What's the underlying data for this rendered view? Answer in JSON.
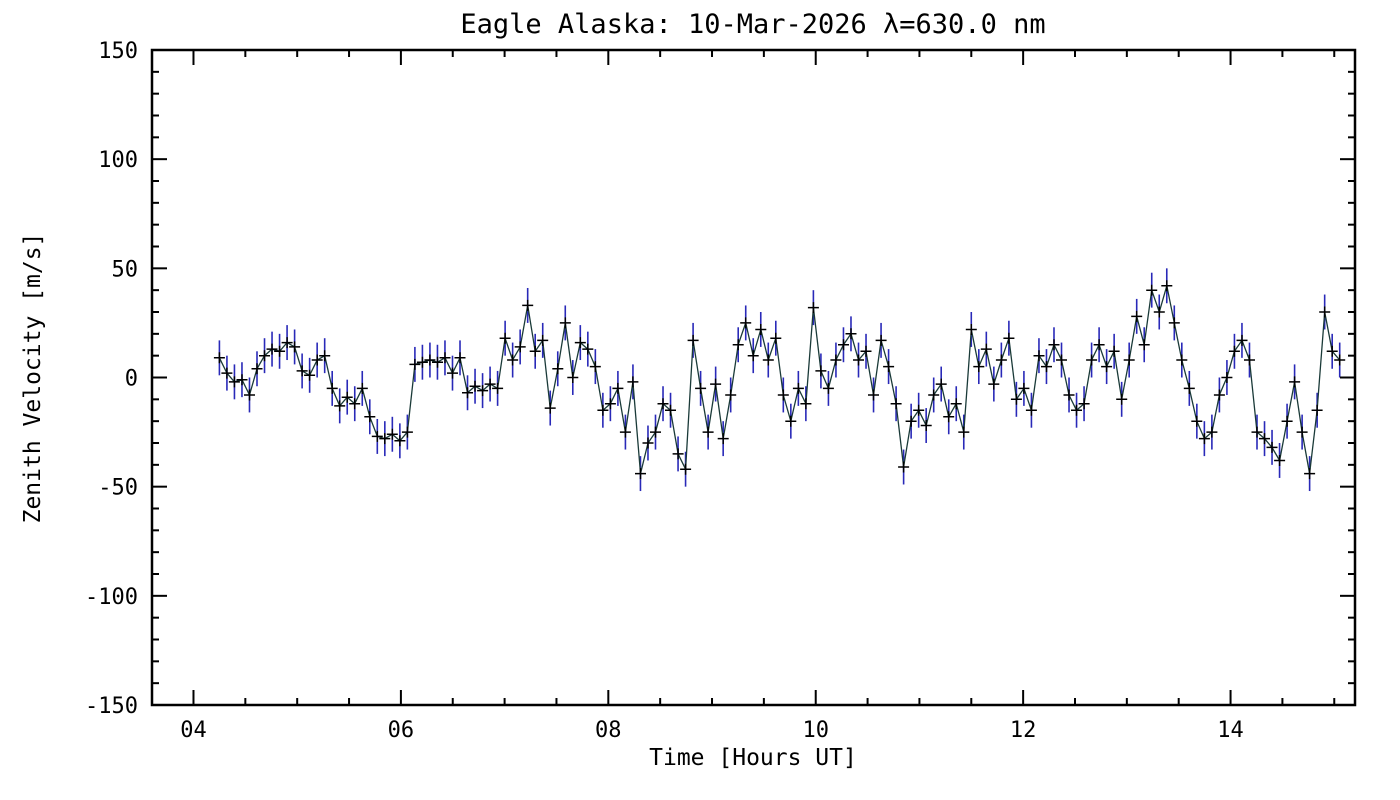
{
  "page": {
    "background": "#ffffff"
  },
  "chart_data": {
    "type": "line",
    "title": "Eagle Alaska: 10-Mar-2026 λ=630.0 nm",
    "xlabel": "Time [Hours UT]",
    "ylabel": "Zenith Velocity [m/s]",
    "series_name": "zenith-velocity",
    "xlim": [
      3.6,
      15.2
    ],
    "ylim": [
      -150,
      150
    ],
    "x_tick_values": [
      4,
      6,
      8,
      10,
      12,
      14
    ],
    "x_tick_labels": [
      "04",
      "06",
      "08",
      "10",
      "12",
      "14"
    ],
    "y_tick_values": [
      -150,
      -100,
      -50,
      0,
      50,
      100,
      150
    ],
    "y_tick_labels": [
      "-150",
      "-100",
      "-50",
      "0",
      "50",
      "100",
      "150"
    ],
    "x_minor_step": 0.5,
    "y_minor_step": 10,
    "grid": false,
    "legend": false,
    "marker": "plus",
    "x_start": 4.25,
    "x_step": 0.0725,
    "yerr": 8,
    "colors": {
      "axis": "#000000",
      "line": "#1a3a38",
      "marker": "#000000",
      "error_bar": "#2929b8"
    },
    "values": [
      9,
      2,
      -2,
      -1,
      -8,
      4,
      10,
      13,
      12,
      16,
      14,
      3,
      1,
      8,
      10,
      -5,
      -13,
      -9,
      -12,
      -5,
      -18,
      -27,
      -28,
      -26,
      -29,
      -25,
      6,
      7,
      8,
      7,
      9,
      2,
      9,
      -7,
      -4,
      -6,
      -3,
      -5,
      18,
      8,
      14,
      33,
      12,
      17,
      -14,
      4,
      25,
      0,
      16,
      13,
      5,
      -15,
      -12,
      -5,
      -25,
      -2,
      -44,
      -30,
      -25,
      -12,
      -15,
      -35,
      -42,
      17,
      -5,
      -25,
      -3,
      -28,
      -8,
      15,
      25,
      10,
      22,
      8,
      18,
      -8,
      -20,
      -5,
      -12,
      32,
      3,
      -5,
      8,
      15,
      20,
      8,
      12,
      -8,
      17,
      5,
      -12,
      -41,
      -20,
      -15,
      -22,
      -8,
      -3,
      -18,
      -12,
      -25,
      22,
      5,
      13,
      -3,
      8,
      18,
      -10,
      -5,
      -15,
      10,
      5,
      15,
      8,
      -8,
      -15,
      -12,
      8,
      15,
      5,
      12,
      -10,
      8,
      28,
      15,
      40,
      30,
      42,
      25,
      8,
      -5,
      -20,
      -28,
      -25,
      -8,
      0,
      12,
      17,
      8,
      -25,
      -28,
      -32,
      -38,
      -20,
      -2,
      -25,
      -44,
      -15,
      30,
      12,
      8
    ]
  }
}
